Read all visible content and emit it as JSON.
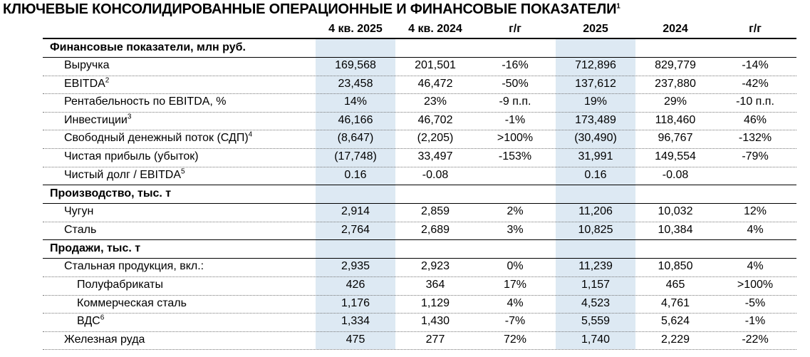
{
  "title": {
    "text": "КЛЮЧЕВЫЕ КОНСОЛИДИРОВАННЫЕ ОПЕРАЦИОННЫЕ И ФИНАНСОВЫЕ ПОКАЗАТЕЛИ",
    "note": "1"
  },
  "table": {
    "columns": [
      "4 кв. 2025",
      "4 кв. 2024",
      "г/г",
      "2025",
      "2024",
      "г/г"
    ],
    "sections": [
      {
        "title": "Финансовые показатели, млн руб.",
        "rows": [
          {
            "label": "Выручка",
            "values": [
              "169,568",
              "201,501",
              "-16%",
              "712,896",
              "829,779",
              "-14%"
            ]
          },
          {
            "label": "EBITDA",
            "note": "2",
            "values": [
              "23,458",
              "46,472",
              "-50%",
              "137,612",
              "237,880",
              "-42%"
            ]
          },
          {
            "label": "Рентабельность по EBITDA, %",
            "values": [
              "14%",
              "23%",
              "-9 п.п.",
              "19%",
              "29%",
              "-10 п.п."
            ]
          },
          {
            "label": "Инвестиции",
            "note": "3",
            "values": [
              "46,166",
              "46,702",
              "-1%",
              "173,489",
              "118,460",
              "46%"
            ]
          },
          {
            "label": "Свободный денежный поток (СДП)",
            "note": "4",
            "values": [
              "(8,647)",
              "(2,205)",
              ">100%",
              "(30,490)",
              "96,767",
              "-132%"
            ]
          },
          {
            "label": "Чистая прибыль (убыток)",
            "values": [
              "(17,748)",
              "33,497",
              "-153%",
              "31,991",
              "149,554",
              "-79%"
            ]
          },
          {
            "label": "Чистый долг / EBITDA",
            "note": "5",
            "values": [
              "0.16",
              "-0.08",
              null,
              "0.16",
              "-0.08",
              null
            ]
          }
        ]
      },
      {
        "title": "Производство, тыс. т",
        "rows": [
          {
            "label": "Чугун",
            "values": [
              "2,914",
              "2,859",
              "2%",
              "11,206",
              "10,032",
              "12%"
            ]
          },
          {
            "label": "Сталь",
            "values": [
              "2,764",
              "2,689",
              "3%",
              "10,825",
              "10,384",
              "4%"
            ]
          }
        ]
      },
      {
        "title": "Продажи, тыс. т",
        "rows": [
          {
            "label": "Стальная продукция, вкл.:",
            "values": [
              "2,935",
              "2,923",
              "0%",
              "11,239",
              "10,850",
              "4%"
            ],
            "items": [
              {
                "label": "Полуфабрикаты",
                "values": [
                  "426",
                  "364",
                  "17%",
                  "1,157",
                  "465",
                  ">100%"
                ]
              },
              {
                "label": "Коммерческая сталь",
                "values": [
                  "1,176",
                  "1,129",
                  "4%",
                  "4,523",
                  "4,761",
                  "-5%"
                ]
              },
              {
                "label": "ВДС",
                "note": "6",
                "values": [
                  "1,334",
                  "1,430",
                  "-7%",
                  "5,559",
                  "5,624",
                  "-1%"
                ]
              }
            ]
          },
          {
            "label": "Железная руда",
            "values": [
              "475",
              "277",
              "72%",
              "1,740",
              "2,229",
              "-22%"
            ]
          }
        ]
      }
    ]
  }
}
